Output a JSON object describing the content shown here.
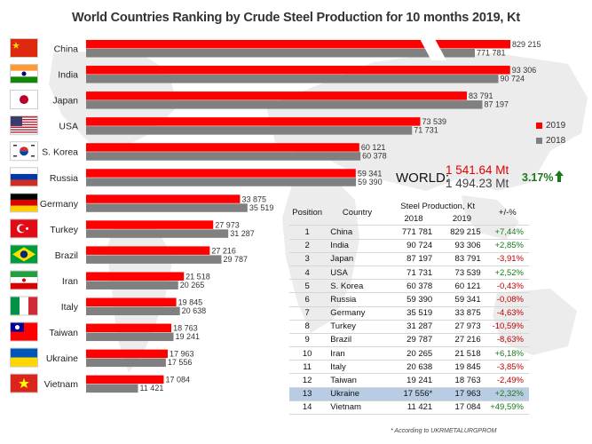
{
  "chart_data": {
    "type": "bar",
    "orientation": "horizontal",
    "title": "World Countries Ranking by Crude Steel Production for 10 months 2019,  Kt",
    "categories": [
      "China",
      "India",
      "Japan",
      "USA",
      "S. Korea",
      "Russia",
      "Germany",
      "Turkey",
      "Brazil",
      "Iran",
      "Italy",
      "Taiwan",
      "Ukraine",
      "Vietnam"
    ],
    "flags": [
      "china-flag-icon",
      "india-flag-icon",
      "japan-flag-icon",
      "usa-flag-icon",
      "south-korea-flag-icon",
      "russia-flag-icon",
      "germany-flag-icon",
      "turkey-flag-icon",
      "brazil-flag-icon",
      "iran-flag-icon",
      "italy-flag-icon",
      "taiwan-flag-icon",
      "ukraine-flag-icon",
      "vietnam-flag-icon"
    ],
    "series": [
      {
        "name": "2019",
        "color": "#ff0000",
        "values": [
          829215,
          93306,
          83791,
          73539,
          60121,
          59341,
          33875,
          27973,
          27216,
          21518,
          19845,
          18763,
          17963,
          17084
        ],
        "labels": [
          "829 215",
          "93 306",
          "83 791",
          "73 539",
          "60 121",
          "59 341",
          "33 875",
          "27 973",
          "27 216",
          "21 518",
          "19 845",
          "18 763",
          "17 963",
          "17 084"
        ]
      },
      {
        "name": "2018",
        "color": "#808080",
        "values": [
          771781,
          90724,
          87197,
          71731,
          60378,
          59390,
          35519,
          31287,
          29787,
          20265,
          20638,
          19241,
          17556,
          11421
        ],
        "labels": [
          "771 781",
          "90 724",
          "87 197",
          "71 731",
          "60 378",
          "59 390",
          "35 519",
          "31 287",
          "29 787",
          "20 265",
          "20 638",
          "19 241",
          "17 556",
          "11 421"
        ]
      }
    ],
    "axis_break": {
      "row": 0
    },
    "xlim": [
      0,
      100000
    ],
    "grid": false,
    "legend_position": "right"
  },
  "world": {
    "label": "WORLD:",
    "value_2019": "1 541.64 Mt",
    "value_2018": "1 494.23 Mt",
    "change": "3.17%"
  },
  "table": {
    "headers": {
      "position": "Position",
      "country": "Country",
      "production": "Steel Production,  Kt",
      "y2018": "2018",
      "y2019": "2019",
      "change": "+/-%"
    },
    "highlight_row": 12,
    "rows": [
      {
        "pos": "1",
        "country": "China",
        "v2018": "771 781",
        "v2019": "829 215",
        "chg": "+7,44%"
      },
      {
        "pos": "2",
        "country": "India",
        "v2018": "90 724",
        "v2019": "93 306",
        "chg": "+2,85%"
      },
      {
        "pos": "3",
        "country": "Japan",
        "v2018": "87 197",
        "v2019": "83 791",
        "chg": "-3,91%"
      },
      {
        "pos": "4",
        "country": "USA",
        "v2018": "71 731",
        "v2019": "73 539",
        "chg": "+2,52%"
      },
      {
        "pos": "5",
        "country": "S. Korea",
        "v2018": "60 378",
        "v2019": "60 121",
        "chg": "-0,43%"
      },
      {
        "pos": "6",
        "country": "Russia",
        "v2018": "59 390",
        "v2019": "59 341",
        "chg": "-0,08%"
      },
      {
        "pos": "7",
        "country": "Germany",
        "v2018": "35 519",
        "v2019": "33 875",
        "chg": "-4,63%"
      },
      {
        "pos": "8",
        "country": "Turkey",
        "v2018": "31 287",
        "v2019": "27 973",
        "chg": "-10,59%"
      },
      {
        "pos": "9",
        "country": "Brazil",
        "v2018": "29 787",
        "v2019": "27 216",
        "chg": "-8,63%"
      },
      {
        "pos": "10",
        "country": "Iran",
        "v2018": "20 265",
        "v2019": "21 518",
        "chg": "+6,18%"
      },
      {
        "pos": "11",
        "country": "Italy",
        "v2018": "20 638",
        "v2019": "19 845",
        "chg": "-3,85%"
      },
      {
        "pos": "12",
        "country": "Taiwan",
        "v2018": "19 241",
        "v2019": "18 763",
        "chg": "-2,49%"
      },
      {
        "pos": "13",
        "country": "Ukraine",
        "v2018": "17 556*",
        "v2019": "17 963",
        "chg": "+2,32%"
      },
      {
        "pos": "14",
        "country": "Vietnam",
        "v2018": "11 421",
        "v2019": "17 084",
        "chg": "+49,59%"
      }
    ]
  },
  "source": "* According to UKRMETALURGPROM",
  "colors": {
    "accent_2019": "#ff0000",
    "accent_2018": "#808080",
    "up": "#1a7a1a",
    "down": "#c00000",
    "highlight": "#b8cce4"
  }
}
